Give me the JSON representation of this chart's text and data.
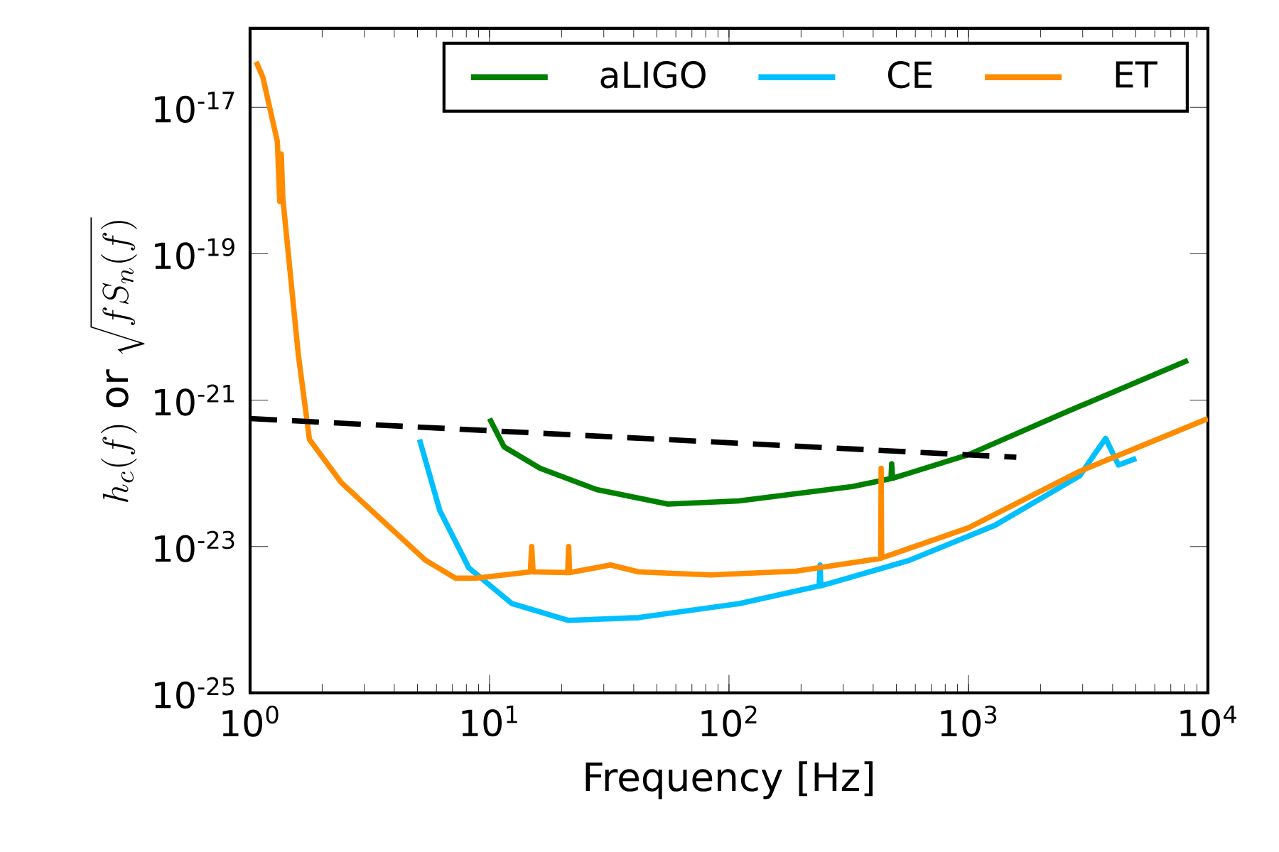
{
  "chart_data": {
    "type": "line",
    "xlabel": "Frequency [Hz]",
    "ylabel": "h_c(f)\\ \\mathrm{or}\\ \\sqrt{fS_n(f)}",
    "log": "xy",
    "legend": "top right",
    "line_style": "solid",
    "marker": "none",
    "xlim": [
      1,
      10000
    ],
    "ylim": [
      1e-25,
      1.2e-16
    ],
    "xticks": [
      {
        "value": 1,
        "label": "10$^{0}$"
      },
      {
        "value": 10,
        "label": "10$^{1}$"
      },
      {
        "value": 100,
        "label": "10$^{2}$"
      },
      {
        "value": 1000,
        "label": "10$^{3}$"
      },
      {
        "value": 10000,
        "label": "10$^{4}$"
      }
    ],
    "yticks": [
      {
        "value": 1e-25,
        "label": "10$^{-25}$"
      },
      {
        "value": 1e-23,
        "label": "10$^{-23}$"
      },
      {
        "value": 1e-21,
        "label": "10$^{-21}$"
      },
      {
        "value": 1e-19,
        "label": "10$^{-19}$"
      },
      {
        "value": 1e-17,
        "label": "10$^{-17}$"
      }
    ],
    "series": [
      {
        "name": "aLIGO",
        "color": "#008000",
        "x": [
          10,
          11.5,
          16.3,
          28,
          55.6,
          110,
          328,
          475,
          478,
          482,
          490,
          1000,
          2560,
          8260
        ],
        "values": [
          5.6e-22,
          2.3e-22,
          1.17e-22,
          6e-23,
          3.8e-23,
          4.2e-23,
          6.6e-23,
          8.5e-23,
          1.35e-22,
          8.6e-23,
          8.7e-23,
          1.8e-22,
          6.9e-22,
          3.5e-21
        ]
      },
      {
        "name": "CE",
        "color": "#00bfff",
        "x": [
          5.1,
          6.2,
          8.2,
          12.4,
          21.4,
          42,
          110,
          238,
          240,
          242,
          568,
          1290,
          2920,
          3350,
          3740,
          4230,
          5020
        ],
        "values": [
          2.9e-22,
          3.1e-23,
          5.1e-24,
          1.66e-24,
          9.8e-25,
          1.07e-24,
          1.66e-24,
          2.9e-24,
          5.6e-24,
          2.9e-24,
          6.5e-24,
          1.95e-23,
          9.3e-23,
          1.8e-22,
          3e-22,
          1.3e-22,
          1.6e-22
        ]
      },
      {
        "name": "ET",
        "color": "#ff8c00",
        "x": [
          1.06,
          1.13,
          1.3,
          1.33,
          1.35,
          1.37,
          1.59,
          1.77,
          2.4,
          5.4,
          7.2,
          8.8,
          14.8,
          15,
          15.2,
          21.2,
          21.4,
          21.6,
          32,
          42,
          84,
          190,
          430,
          432,
          434,
          1000,
          2920,
          10000
        ],
        "values": [
          4.2e-17,
          2.6e-17,
          3.4e-18,
          5.2e-19,
          2.3e-18,
          5.7e-19,
          4.2e-21,
          2.9e-22,
          7.5e-23,
          6.5e-24,
          3.7e-24,
          3.7e-24,
          4.5e-24,
          1e-23,
          4.5e-24,
          4.4e-24,
          1e-23,
          4.4e-24,
          5.6e-24,
          4.5e-24,
          4.1e-24,
          4.6e-24,
          6.9e-24,
          1.17e-22,
          7e-24,
          1.8e-23,
          1.07e-22,
          5.6e-22
        ]
      },
      {
        "color": "#000000",
        "line_style": "dashed",
        "x": [
          1,
          1585
        ],
        "values": [
          5.6e-22,
          1.66e-22
        ]
      }
    ]
  }
}
